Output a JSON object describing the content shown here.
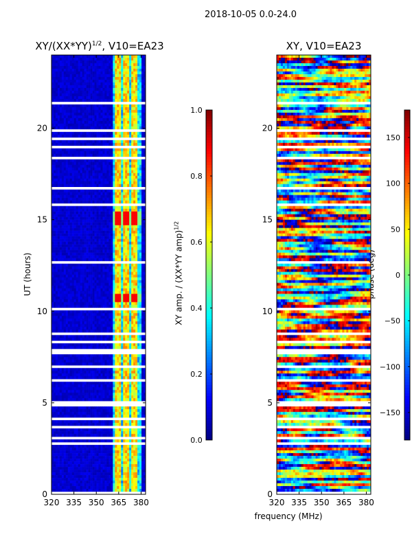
{
  "figure": {
    "title": "2018-10-05 0.0-24.0",
    "xlabel": "frequency (MHz)"
  },
  "chart_data": [
    {
      "type": "heatmap",
      "title_text": "XY/(XX*YY)",
      "title_sup": "1/2",
      "title_suffix": ", V10=EA23",
      "ylabel": "UT (hours)",
      "x_ticks": [
        320,
        335,
        350,
        365,
        380
      ],
      "y_ticks": [
        0,
        5,
        10,
        15,
        20
      ],
      "xlim": [
        320,
        383
      ],
      "ylim": [
        0,
        24
      ],
      "colorbar": {
        "label_text": "XY amp. / (XX*YY amp)",
        "label_sup": "1/2",
        "ticks": [
          0.0,
          0.2,
          0.4,
          0.6,
          0.8,
          1.0
        ],
        "tick_labels": [
          "0.0",
          "0.2",
          "0.4",
          "0.6",
          "0.8",
          "1.0"
        ],
        "range": [
          0,
          1
        ],
        "colormap": "jet"
      }
    },
    {
      "type": "heatmap",
      "title_text": "XY, V10=EA23",
      "title_sup": "",
      "title_suffix": "",
      "ylabel": "",
      "x_ticks": [
        320,
        335,
        350,
        365,
        380
      ],
      "y_ticks": [
        0,
        5,
        10,
        15,
        20
      ],
      "xlim": [
        320,
        383
      ],
      "ylim": [
        0,
        24
      ],
      "colorbar": {
        "label_text": "phase (deg)",
        "label_sup": "",
        "ticks": [
          -150,
          -100,
          -50,
          0,
          50,
          100,
          150
        ],
        "tick_labels": [
          "−150",
          "−100",
          "−50",
          "0",
          "50",
          "100",
          "150"
        ],
        "range": [
          -180,
          180
        ],
        "colormap": "jet"
      }
    }
  ]
}
